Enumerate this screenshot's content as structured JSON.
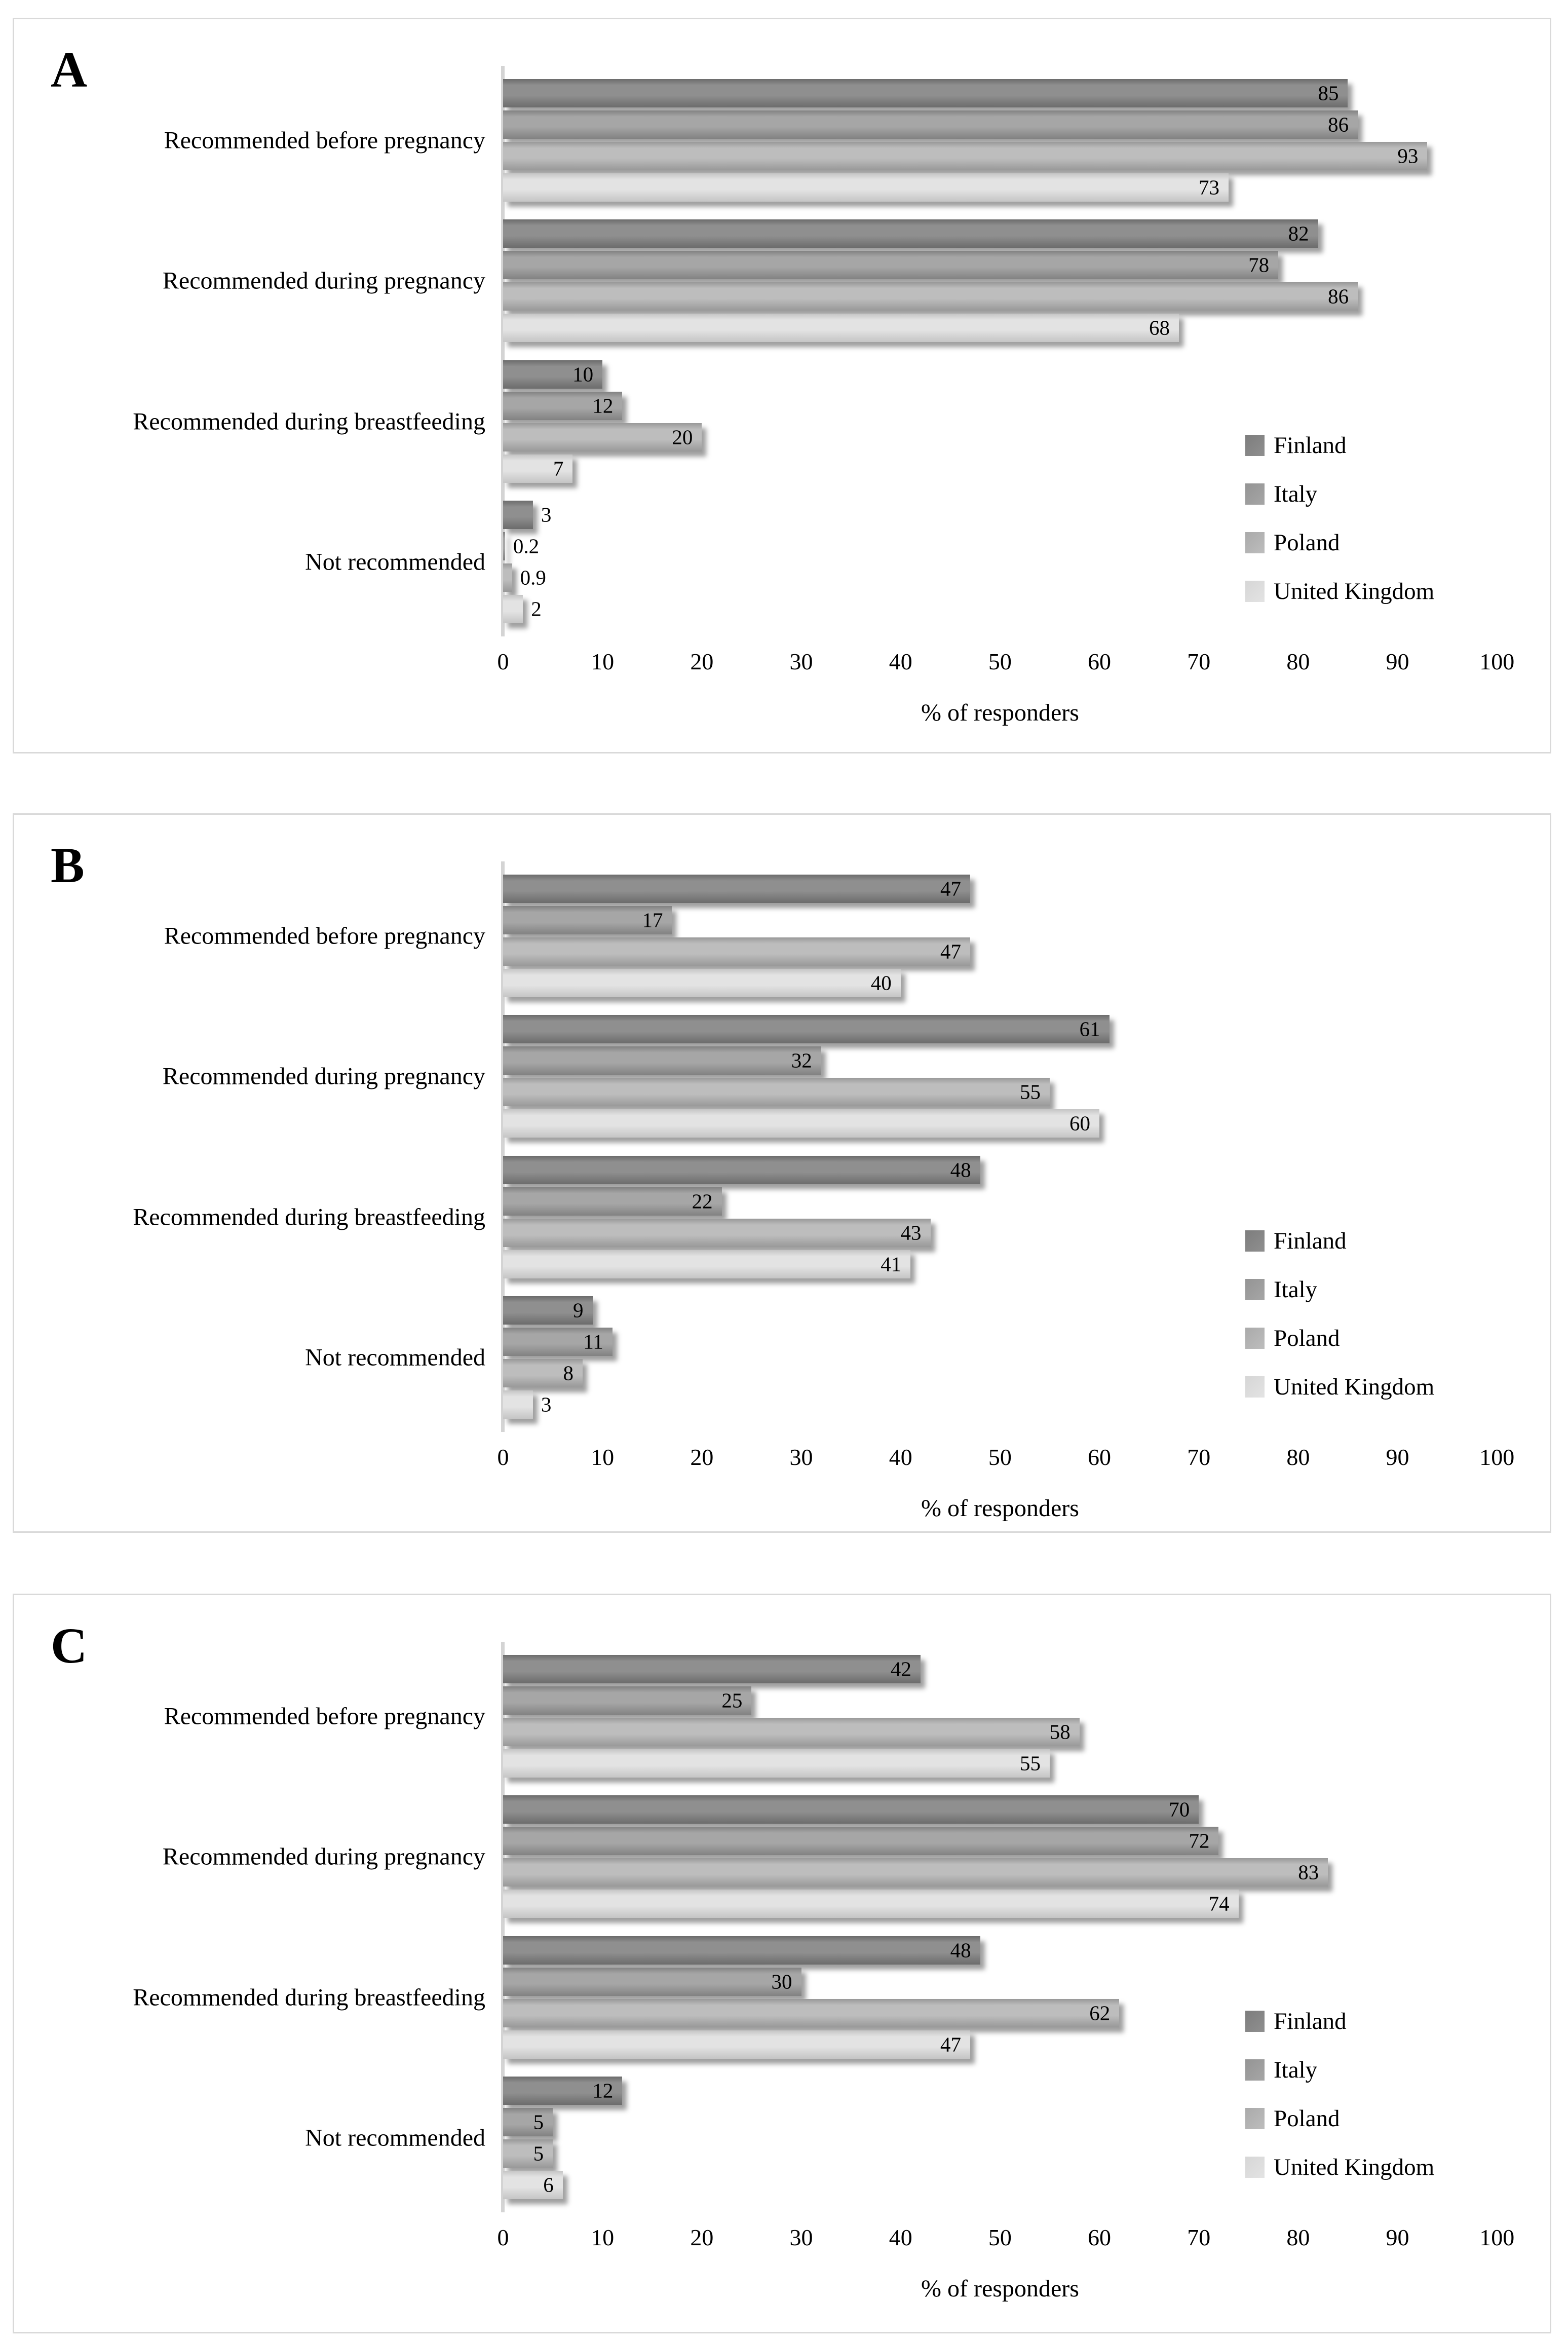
{
  "figure": {
    "xlabel": "% of responders",
    "outside_label_threshold": 5,
    "colors": {
      "panel_border": "#d9d9d9",
      "axis_line": "#d4d4d4",
      "text": "#000000"
    }
  },
  "series_styles": {
    "Finland": {
      "light": "#8f8f8f",
      "base": "#7d7d7d",
      "dark": "#6c6c6c"
    },
    "Italy": {
      "light": "#a6a6a6",
      "base": "#949494",
      "dark": "#828282"
    },
    "Poland": {
      "light": "#bdbdbd",
      "base": "#aaaaaa",
      "dark": "#999999"
    },
    "United Kingdom": {
      "light": "#e3e3e3",
      "base": "#d6d6d6",
      "dark": "#c5c5c5"
    }
  },
  "chart_data": [
    {
      "type": "bar",
      "panel_label": "A",
      "orientation": "horizontal",
      "categories": [
        "Recommended before pregnancy",
        "Recommended during pregnancy",
        "Recommended during breastfeeding",
        "Not recommended"
      ],
      "series": [
        {
          "name": "Finland",
          "values": [
            85,
            82,
            10,
            3
          ]
        },
        {
          "name": "Italy",
          "values": [
            86,
            78,
            12,
            0.2
          ]
        },
        {
          "name": "Poland",
          "values": [
            93,
            86,
            20,
            0.9
          ]
        },
        {
          "name": "United Kingdom",
          "values": [
            73,
            68,
            7,
            2
          ]
        }
      ],
      "xlabel": "% of responders",
      "xticks": [
        0,
        10,
        20,
        30,
        40,
        50,
        60,
        70,
        80,
        90,
        100
      ],
      "xlim": [
        0,
        104.5
      ],
      "grid": false,
      "legend_position": "right-lower",
      "legend": [
        "Finland",
        "Italy",
        "Poland",
        "United Kingdom"
      ]
    },
    {
      "type": "bar",
      "panel_label": "B",
      "orientation": "horizontal",
      "categories": [
        "Recommended before pregnancy",
        "Recommended during pregnancy",
        "Recommended during breastfeeding",
        "Not recommended"
      ],
      "series": [
        {
          "name": "Finland",
          "values": [
            47,
            61,
            48,
            9
          ]
        },
        {
          "name": "Italy",
          "values": [
            17,
            32,
            22,
            11
          ]
        },
        {
          "name": "Poland",
          "values": [
            47,
            55,
            43,
            8
          ]
        },
        {
          "name": "United Kingdom",
          "values": [
            40,
            60,
            41,
            3
          ]
        }
      ],
      "xlabel": "% of responders",
      "xticks": [
        0,
        10,
        20,
        30,
        40,
        50,
        60,
        70,
        80,
        90,
        100
      ],
      "xlim": [
        0,
        104.5
      ],
      "grid": false,
      "legend_position": "right-lower",
      "legend": [
        "Finland",
        "Italy",
        "Poland",
        "United Kingdom"
      ]
    },
    {
      "type": "bar",
      "panel_label": "C",
      "orientation": "horizontal",
      "categories": [
        "Recommended before pregnancy",
        "Recommended during pregnancy",
        "Recommended during breastfeeding",
        "Not recommended"
      ],
      "series": [
        {
          "name": "Finland",
          "values": [
            42,
            70,
            48,
            12
          ]
        },
        {
          "name": "Italy",
          "values": [
            25,
            72,
            30,
            5
          ]
        },
        {
          "name": "Poland",
          "values": [
            58,
            83,
            62,
            5
          ]
        },
        {
          "name": "United Kingdom",
          "values": [
            55,
            74,
            47,
            6
          ]
        }
      ],
      "xlabel": "% of responders",
      "xticks": [
        0,
        10,
        20,
        30,
        40,
        50,
        60,
        70,
        80,
        90,
        100
      ],
      "xlim": [
        0,
        104.5
      ],
      "grid": false,
      "legend_position": "right-lower",
      "legend": [
        "Finland",
        "Italy",
        "Poland",
        "United Kingdom"
      ]
    }
  ]
}
